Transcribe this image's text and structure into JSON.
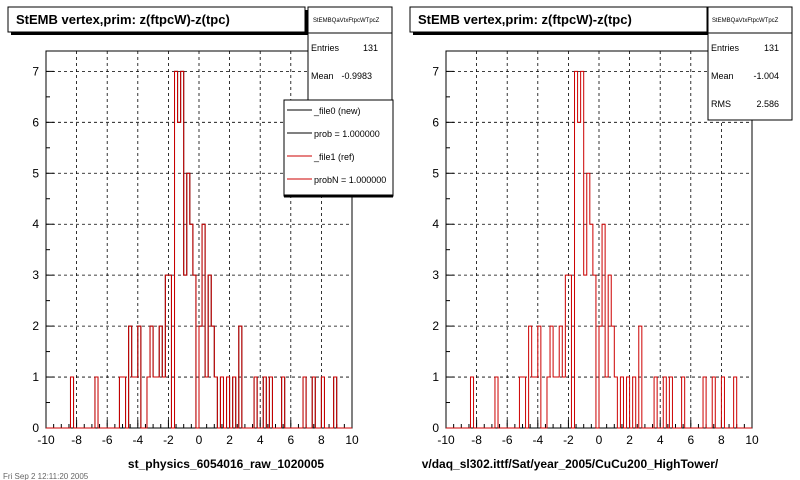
{
  "colors": {
    "file0": "#000000",
    "file1": "#cc0000",
    "grid": "#000000",
    "frame": "#000000",
    "shadow": "#000000"
  },
  "left_panel": {
    "title": "StEMB  vertex,prim: z(ftpcW)-z(tpc)",
    "stats": {
      "name": "StEMBQaVtxFtpcWTpcZ",
      "entries_label": "Entries",
      "entries_value": "131",
      "mean_label": "Mean",
      "mean_value": "-0.9983"
    },
    "legend": [
      {
        "label": "_file0 (new)",
        "color_key": "file0"
      },
      {
        "label": "prob = 1.000000",
        "color_key": "file0"
      },
      {
        "label": "_file1 (ref)",
        "color_key": "file1"
      },
      {
        "label": "probN = 1.000000",
        "color_key": "file1"
      }
    ],
    "xlabel": "st_physics_6054016_raw_1020005",
    "footer_text": "Fri Sep  2 12:11:20 2005"
  },
  "right_panel": {
    "title": "StEMB  vertex,prim: z(ftpcW)-z(tpc)",
    "stats": {
      "name": "StEMBQaVtxFtpcWTpcZ",
      "entries_label": "Entries",
      "entries_value": "131",
      "mean_label": "Mean",
      "mean_value": "-1.004",
      "rms_label": "RMS",
      "rms_value": "2.586"
    },
    "xlabel": "v/daq_sl302.ittf/Sat/year_2005/CuCu200_HighTower/"
  },
  "chart_data": [
    {
      "type": "bar",
      "histogram": true,
      "title": "StEMB  vertex,prim: z(ftpcW)-z(tpc)",
      "xlabel": "st_physics_6054016_raw_1020005",
      "ylabel": "",
      "xlim": [
        -10,
        10
      ],
      "ylim": [
        0,
        7.4
      ],
      "xticks": [
        "-10",
        "-8",
        "-6",
        "-4",
        "-2",
        "0",
        "2",
        "4",
        "6",
        "8",
        "10"
      ],
      "yticks": [
        "0",
        "1",
        "2",
        "3",
        "4",
        "5",
        "6",
        "7"
      ],
      "grid": true,
      "legend_position": "top-right",
      "bin_low": -10,
      "bin_width": 0.2,
      "series": [
        {
          "name": "_file0 (new)",
          "color_key": "file0",
          "values": [
            0,
            0,
            0,
            0,
            0,
            0,
            0,
            0,
            1,
            0,
            0,
            0,
            0,
            0,
            0,
            0,
            1,
            0,
            0,
            0,
            0,
            0,
            0,
            0,
            1,
            1,
            0,
            2,
            1,
            1,
            2,
            0,
            0,
            1,
            2,
            1,
            1,
            2,
            1,
            3,
            3,
            0,
            7,
            6,
            7,
            3,
            5,
            4,
            3,
            0,
            2,
            4,
            1,
            3,
            2,
            1,
            0,
            1,
            0,
            1,
            0,
            1,
            0,
            2,
            0,
            0,
            0,
            0,
            1,
            0,
            0,
            1,
            0,
            1,
            0,
            0,
            0,
            1,
            0,
            0,
            0,
            0,
            0,
            0,
            1,
            0,
            0,
            1,
            0,
            0,
            1,
            0,
            0,
            0,
            1,
            0,
            0,
            0,
            0,
            0
          ]
        },
        {
          "name": "_file1 (ref)",
          "color_key": "file1",
          "values": [
            0,
            0,
            0,
            0,
            0,
            0,
            0,
            0,
            1,
            0,
            0,
            0,
            0,
            0,
            0,
            0,
            1,
            0,
            0,
            0,
            0,
            0,
            0,
            0,
            1,
            1,
            0,
            2,
            1,
            1,
            2,
            0,
            0,
            1,
            2,
            1,
            1,
            2,
            1,
            3,
            3,
            0,
            7,
            6,
            7,
            3,
            5,
            4,
            3,
            0,
            2,
            4,
            1,
            3,
            2,
            1,
            0,
            1,
            0,
            1,
            0,
            1,
            0,
            2,
            0,
            0,
            0,
            0,
            1,
            0,
            0,
            1,
            0,
            1,
            0,
            0,
            0,
            1,
            0,
            0,
            0,
            0,
            0,
            0,
            1,
            0,
            0,
            1,
            0,
            0,
            1,
            0,
            0,
            0,
            1,
            0,
            0,
            0,
            0,
            0
          ]
        }
      ]
    },
    {
      "type": "bar",
      "histogram": true,
      "title": "StEMB  vertex,prim: z(ftpcW)-z(tpc)",
      "xlabel": "v/daq_sl302.ittf/Sat/year_2005/CuCu200_HighTower/",
      "ylabel": "",
      "xlim": [
        -10,
        10
      ],
      "ylim": [
        0,
        7.4
      ],
      "xticks": [
        "-10",
        "-8",
        "-6",
        "-4",
        "-2",
        "0",
        "2",
        "4",
        "6",
        "8",
        "10"
      ],
      "yticks": [
        "0",
        "1",
        "2",
        "3",
        "4",
        "5",
        "6",
        "7"
      ],
      "grid": true,
      "bin_low": -10,
      "bin_width": 0.2,
      "series": [
        {
          "color_key": "file1",
          "values": [
            0,
            0,
            0,
            0,
            0,
            0,
            0,
            0,
            1,
            0,
            0,
            0,
            0,
            0,
            0,
            0,
            1,
            0,
            0,
            0,
            0,
            0,
            0,
            0,
            1,
            1,
            0,
            2,
            1,
            1,
            2,
            0,
            0,
            1,
            2,
            1,
            1,
            2,
            1,
            3,
            3,
            0,
            7,
            6,
            7,
            3,
            5,
            4,
            3,
            0,
            2,
            4,
            1,
            3,
            2,
            1,
            0,
            1,
            0,
            1,
            0,
            1,
            0,
            2,
            0,
            0,
            0,
            0,
            1,
            0,
            0,
            1,
            0,
            1,
            0,
            0,
            0,
            1,
            0,
            0,
            0,
            0,
            0,
            0,
            1,
            0,
            0,
            1,
            0,
            0,
            1,
            0,
            0,
            0,
            1,
            0,
            0,
            0,
            0,
            0
          ]
        }
      ]
    }
  ]
}
